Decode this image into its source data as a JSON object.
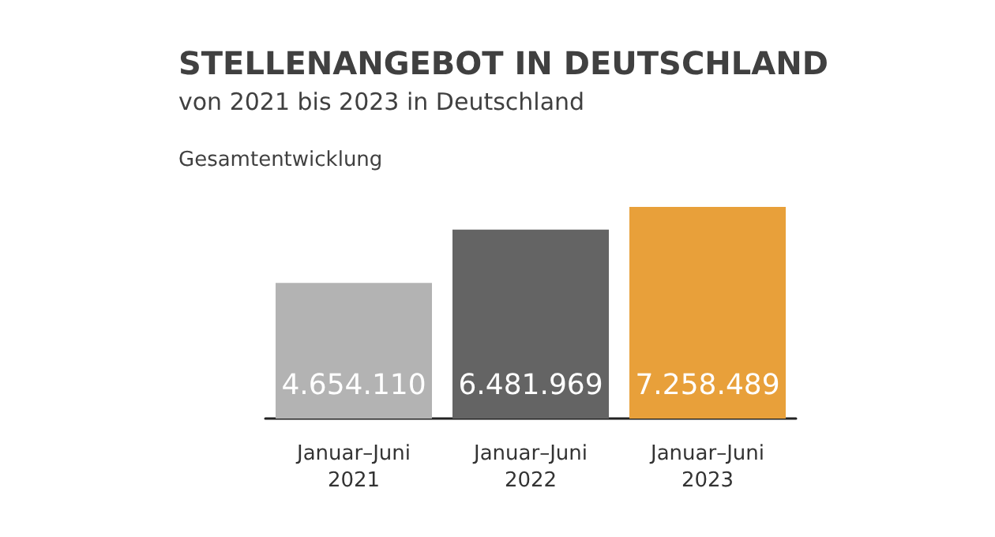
{
  "chart_data": {
    "type": "bar",
    "title": "STELLENANGEBOT IN DEUTSCHLAND",
    "subtitle": "von 2021 bis 2023 in Deutschland",
    "annotations": [
      "Gesamtentwicklung"
    ],
    "categories": [
      "Januar–Juni\n2021",
      "Januar–Juni\n2022",
      "Januar–Juni\n2023"
    ],
    "values": [
      4654110,
      6481969,
      7258489
    ],
    "value_labels": [
      "4.654.110",
      "6.481.969",
      "7.258.489"
    ],
    "colors": [
      "#b3b3b3",
      "#646464",
      "#e8a03a"
    ]
  }
}
